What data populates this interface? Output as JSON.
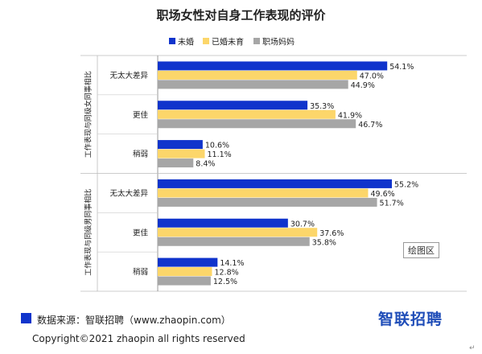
{
  "source": "数据来源：智联招聘（www.zhaopin.com）",
  "brand": "智联招聘",
  "copyright": "Copyright©2021 zhaopin all rights reserved",
  "plot_area_tag": "绘图区",
  "corner_mark": "↵",
  "colors": {
    "unmarried": "#1034cc",
    "married": "#fcd66a",
    "mother": "#a6a6a6",
    "source_marker": "#1034cc"
  },
  "chart_data": {
    "type": "bar",
    "orientation": "horizontal",
    "title": "职场女性对自身工作表现的评价",
    "legend_position": "top",
    "xlim": [
      0,
      60
    ],
    "grid": false,
    "series": [
      {
        "name": "未婚",
        "color": "#1034cc"
      },
      {
        "name": "已婚未育",
        "color": "#fcd66a"
      },
      {
        "name": "职场妈妈",
        "color": "#a6a6a6"
      }
    ],
    "groups": [
      {
        "label": "工作表现与同级女同事相比",
        "categories": [
          {
            "label": "无太大差异",
            "values": [
              54.1,
              47.0,
              44.9
            ],
            "labels": [
              "54.1%",
              "47.0%",
              "44.9%"
            ]
          },
          {
            "label": "更佳",
            "values": [
              35.3,
              41.9,
              46.7
            ],
            "labels": [
              "35.3%",
              "41.9%",
              "46.7%"
            ]
          },
          {
            "label": "稍弱",
            "values": [
              10.6,
              11.1,
              8.4
            ],
            "labels": [
              "10.6%",
              "11.1%",
              "8.4%"
            ]
          }
        ]
      },
      {
        "label": "工作表现与同级男同事相比",
        "categories": [
          {
            "label": "无太大差异",
            "values": [
              55.2,
              49.6,
              51.7
            ],
            "labels": [
              "55.2%",
              "49.6%",
              "51.7%"
            ]
          },
          {
            "label": "更佳",
            "values": [
              30.7,
              37.6,
              35.8
            ],
            "labels": [
              "30.7%",
              "37.6%",
              "35.8%"
            ]
          },
          {
            "label": "稍弱",
            "values": [
              14.1,
              12.8,
              12.5
            ],
            "labels": [
              "14.1%",
              "12.8%",
              "12.5%"
            ]
          }
        ]
      }
    ]
  }
}
